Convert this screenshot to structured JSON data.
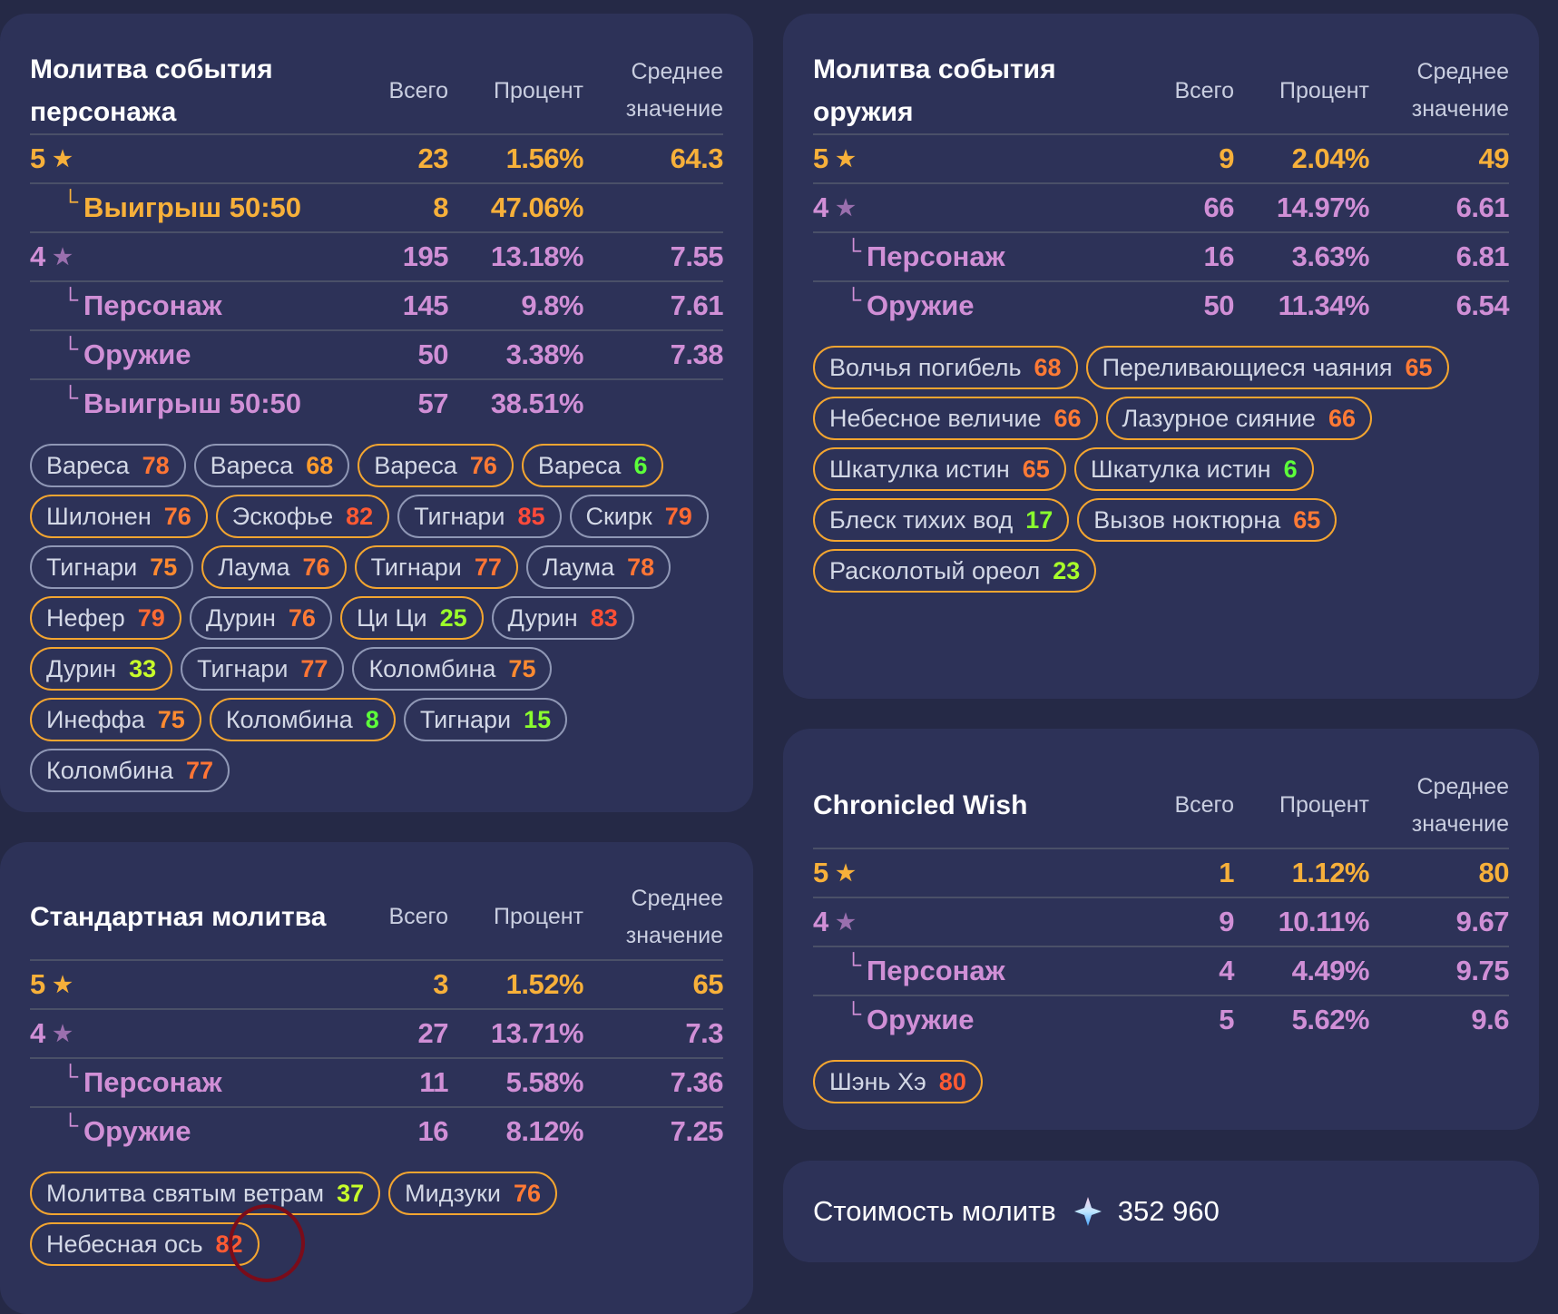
{
  "colors": {
    "gold": "#f7b03a",
    "purple": "#d08fd6",
    "purple_star": "#9a6fae",
    "grey_border": "#8f97b5",
    "gold_border": "#f3a530"
  },
  "columns": {
    "total": "Всего",
    "percent": "Процент",
    "avg_line1": "Среднее",
    "avg_line2": "значение"
  },
  "cards": [
    {
      "id": "character-event",
      "title": "Молитва события персонажа",
      "rows": [
        {
          "label": "5",
          "star": true,
          "tier": "gold",
          "total": "23",
          "percent": "1.56%",
          "avg": "64.3"
        },
        {
          "label": "Выигрыш 50:50",
          "sub": true,
          "tier": "gold",
          "total": "8",
          "percent": "47.06%",
          "avg": ""
        },
        {
          "label": "4",
          "star": true,
          "tier": "purple",
          "total": "195",
          "percent": "13.18%",
          "avg": "7.55"
        },
        {
          "label": "Персонаж",
          "sub": true,
          "tier": "purple",
          "total": "145",
          "percent": "9.8%",
          "avg": "7.61"
        },
        {
          "label": "Оружие",
          "sub": true,
          "tier": "purple",
          "total": "50",
          "percent": "3.38%",
          "avg": "7.38"
        },
        {
          "label": "Выигрыш 50:50",
          "sub": true,
          "tier": "purple",
          "total": "57",
          "percent": "38.51%",
          "avg": ""
        }
      ],
      "pills": [
        {
          "name": "Вареса",
          "value": "78",
          "border": "grey",
          "color": "#ff7535"
        },
        {
          "name": "Вареса",
          "value": "68",
          "border": "grey",
          "color": "#ff9c2c"
        },
        {
          "name": "Вареса",
          "value": "76",
          "border": "gold",
          "color": "#ff7a35"
        },
        {
          "name": "Вареса",
          "value": "6",
          "border": "gold",
          "color": "#5cff3a"
        },
        {
          "name": "Шилонен",
          "value": "76",
          "border": "gold",
          "color": "#ff7a35"
        },
        {
          "name": "Эскофье",
          "value": "82",
          "border": "gold",
          "color": "#ff5a33"
        },
        {
          "name": "Тигнари",
          "value": "85",
          "border": "grey",
          "color": "#ff4a3a"
        },
        {
          "name": "Скирк",
          "value": "79",
          "border": "grey",
          "color": "#ff6a33"
        },
        {
          "name": "Тигнари",
          "value": "75",
          "border": "grey",
          "color": "#ff8a30"
        },
        {
          "name": "Лаума",
          "value": "76",
          "border": "gold",
          "color": "#ff7a35"
        },
        {
          "name": "Тигнари",
          "value": "77",
          "border": "gold",
          "color": "#ff7535"
        },
        {
          "name": "Лаума",
          "value": "78",
          "border": "grey",
          "color": "#ff7535"
        },
        {
          "name": "Нефер",
          "value": "79",
          "border": "gold",
          "color": "#ff6a33"
        },
        {
          "name": "Дурин",
          "value": "76",
          "border": "grey",
          "color": "#ff7a35"
        },
        {
          "name": "Ци Ци",
          "value": "25",
          "border": "gold",
          "color": "#9cff2a"
        },
        {
          "name": "Дурин",
          "value": "83",
          "border": "grey",
          "color": "#ff4f35"
        },
        {
          "name": "Дурин",
          "value": "33",
          "border": "gold",
          "color": "#c8ff2a"
        },
        {
          "name": "Тигнари",
          "value": "77",
          "border": "grey",
          "color": "#ff7535"
        },
        {
          "name": "Коломбина",
          "value": "75",
          "border": "grey",
          "color": "#ff8a30"
        },
        {
          "name": "Инеффа",
          "value": "75",
          "border": "gold",
          "color": "#ff8a30"
        },
        {
          "name": "Коломбина",
          "value": "8",
          "border": "gold",
          "color": "#5cff3a"
        },
        {
          "name": "Тигнари",
          "value": "15",
          "border": "grey",
          "color": "#8aff2e"
        },
        {
          "name": "Коломбина",
          "value": "77",
          "border": "grey",
          "color": "#ff7535"
        }
      ]
    },
    {
      "id": "standard",
      "title": "Стандартная молитва",
      "rows": [
        {
          "label": "5",
          "star": true,
          "tier": "gold",
          "total": "3",
          "percent": "1.52%",
          "avg": "65"
        },
        {
          "label": "4",
          "star": true,
          "tier": "purple",
          "total": "27",
          "percent": "13.71%",
          "avg": "7.3"
        },
        {
          "label": "Персонаж",
          "sub": true,
          "tier": "purple",
          "total": "11",
          "percent": "5.58%",
          "avg": "7.36"
        },
        {
          "label": "Оружие",
          "sub": true,
          "tier": "purple",
          "total": "16",
          "percent": "8.12%",
          "avg": "7.25"
        }
      ],
      "pills": [
        {
          "name": "Молитва святым ветрам",
          "value": "37",
          "border": "gold",
          "color": "#c8ff2a"
        },
        {
          "name": "Мидзуки",
          "value": "76",
          "border": "gold",
          "color": "#ff7a35"
        },
        {
          "name": "Небесная ось",
          "value": "82",
          "border": "gold",
          "color": "#ff5a33"
        }
      ]
    },
    {
      "id": "weapon-event",
      "title": "Молитва события оружия",
      "rows": [
        {
          "label": "5",
          "star": true,
          "tier": "gold",
          "total": "9",
          "percent": "2.04%",
          "avg": "49"
        },
        {
          "label": "4",
          "star": true,
          "tier": "purple",
          "total": "66",
          "percent": "14.97%",
          "avg": "6.61"
        },
        {
          "label": "Персонаж",
          "sub": true,
          "tier": "purple",
          "total": "16",
          "percent": "3.63%",
          "avg": "6.81"
        },
        {
          "label": "Оружие",
          "sub": true,
          "tier": "purple",
          "total": "50",
          "percent": "11.34%",
          "avg": "6.54"
        }
      ],
      "pills": [
        {
          "name": "Волчья погибель",
          "value": "68",
          "border": "gold",
          "color": "#ff7a35"
        },
        {
          "name": "Переливающиеся чаяния",
          "value": "65",
          "border": "gold",
          "color": "#ff7a35"
        },
        {
          "name": "Небесное величие",
          "value": "66",
          "border": "gold",
          "color": "#ff7a35"
        },
        {
          "name": "Лазурное сияние",
          "value": "66",
          "border": "gold",
          "color": "#ff7a35"
        },
        {
          "name": "Шкатулка истин",
          "value": "65",
          "border": "gold",
          "color": "#ff7a35"
        },
        {
          "name": "Шкатулка истин",
          "value": "6",
          "border": "gold",
          "color": "#5cff3a"
        },
        {
          "name": "Блеск тихих вод",
          "value": "17",
          "border": "gold",
          "color": "#8aff2e"
        },
        {
          "name": "Вызов ноктюрна",
          "value": "65",
          "border": "gold",
          "color": "#ff7a35"
        },
        {
          "name": "Расколотый ореол",
          "value": "23",
          "border": "gold",
          "color": "#a8ff2a"
        }
      ]
    },
    {
      "id": "chronicled",
      "title": "Chronicled Wish",
      "rows": [
        {
          "label": "5",
          "star": true,
          "tier": "gold",
          "total": "1",
          "percent": "1.12%",
          "avg": "80"
        },
        {
          "label": "4",
          "star": true,
          "tier": "purple",
          "total": "9",
          "percent": "10.11%",
          "avg": "9.67"
        },
        {
          "label": "Персонаж",
          "sub": true,
          "tier": "purple",
          "total": "4",
          "percent": "4.49%",
          "avg": "9.75"
        },
        {
          "label": "Оружие",
          "sub": true,
          "tier": "purple",
          "total": "5",
          "percent": "5.62%",
          "avg": "9.6"
        }
      ],
      "pills": [
        {
          "name": "Шэнь Хэ",
          "value": "80",
          "border": "gold",
          "color": "#ff5a33"
        }
      ]
    }
  ],
  "cost": {
    "label": "Стоимость молитв",
    "icon": "primogem-icon",
    "value": "352 960"
  }
}
